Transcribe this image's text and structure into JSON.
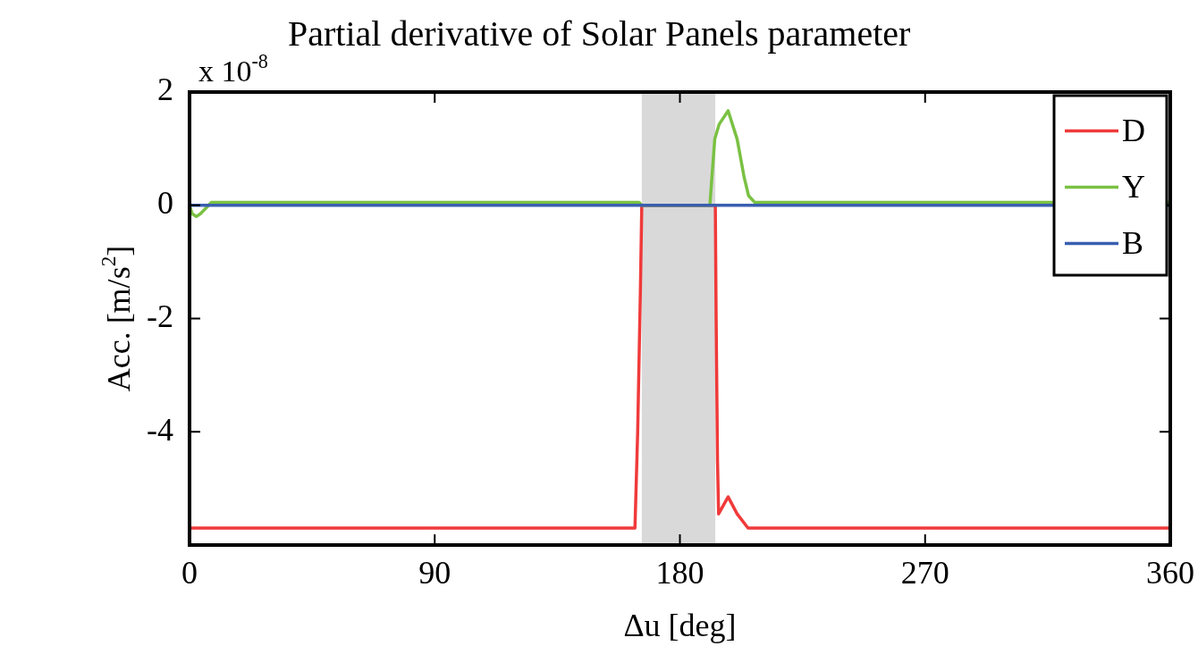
{
  "chart_data": {
    "type": "line",
    "title": "Partial derivative of Solar Panels parameter",
    "xlabel": "Δu [deg]",
    "ylabel": "Acc. [m/s$^{2}$]",
    "annotations": [
      "x 10$^{-8}$"
    ],
    "series": [
      {
        "name": "D",
        "color": "#f03a3a",
        "x": [
          0,
          163.5,
          164.5,
          165.5,
          166,
          193,
          193.3,
          193.8,
          194.2,
          197.7,
          201,
          205,
          360
        ],
        "values": [
          -5.7,
          -5.7,
          -4,
          -1.5,
          0,
          0,
          -2,
          -4.5,
          -5.45,
          -5.15,
          -5.45,
          -5.7,
          -5.7
        ]
      },
      {
        "name": "Y",
        "color": "#7ac143",
        "x": [
          0,
          1,
          2.5,
          4,
          6,
          8,
          165,
          166,
          191,
          191.8,
          192.8,
          194.4,
          197.7,
          201,
          203.6,
          205.2,
          207.5,
          360
        ],
        "values": [
          0,
          -0.15,
          -0.2,
          -0.15,
          -0.05,
          0.05,
          0.05,
          0,
          0,
          0.53,
          1.17,
          1.43,
          1.67,
          1.17,
          0.49,
          0.17,
          0.05,
          0.05
        ]
      },
      {
        "name": "B",
        "color": "#3a5fb0",
        "x": [
          0,
          360
        ],
        "values": [
          0,
          0
        ]
      }
    ],
    "xlim": [
      0,
      360
    ],
    "xticks": [
      0,
      90,
      180,
      270,
      360
    ],
    "ylim": [
      -6,
      2
    ],
    "yticks": [
      -4,
      -2,
      0,
      2
    ],
    "bands": [
      {
        "axis": "x",
        "from": 166,
        "to": 193,
        "color": "#d9d9d9"
      }
    ],
    "grid": false,
    "legend": "top right",
    "marker": "none",
    "line_style": "solid"
  }
}
